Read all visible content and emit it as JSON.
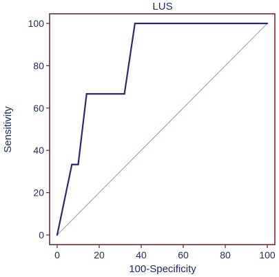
{
  "chart_data": {
    "type": "line",
    "title": "LUS",
    "xlabel": "100-Specificity",
    "ylabel": "Sensitivity",
    "xlim": [
      0,
      100
    ],
    "ylim": [
      0,
      100
    ],
    "xticks": [
      "0",
      "20",
      "40",
      "60",
      "80",
      "100"
    ],
    "yticks": [
      "0",
      "20",
      "40",
      "60",
      "80",
      "100"
    ],
    "grid": false,
    "series": [
      {
        "x": [
          0,
          7,
          10,
          14,
          32,
          37,
          100
        ],
        "y": [
          0,
          33.3,
          33.3,
          66.7,
          66.7,
          100,
          100
        ]
      }
    ],
    "reference_line": {
      "x": [
        0,
        100
      ],
      "y": [
        0,
        100
      ]
    },
    "colors": {
      "frame": "#6b1f1f",
      "curve": "#28287a",
      "reference": "#c58a8a",
      "text": "#1f2a66"
    }
  }
}
